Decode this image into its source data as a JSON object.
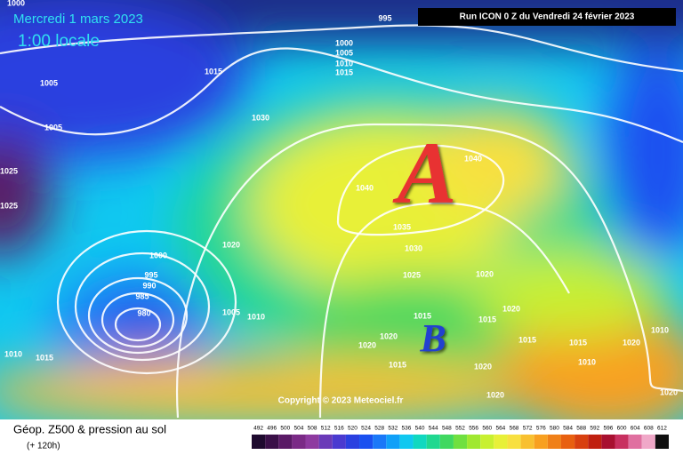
{
  "header": {
    "date": "Mercredi 1 mars 2023",
    "time": "1:00 locale",
    "run": "Run ICON 0 Z du Vendredi 24 février 2023"
  },
  "map": {
    "high_label": "A",
    "low_label": "B",
    "isobar_labels": [
      995,
      1000,
      1005,
      1010,
      1015,
      1015,
      1005,
      1005,
      1000,
      1025,
      1025,
      1030,
      1040,
      1040,
      1035,
      1030,
      1025,
      1020,
      1020,
      1015,
      1015,
      1015,
      1015,
      1020,
      1020,
      1015,
      1020,
      1020,
      1020,
      1000,
      995,
      990,
      985,
      980,
      1005,
      1010,
      1010,
      1015,
      1020,
      1010,
      1020,
      1010
    ],
    "copyright": "Copyright © 2023 Meteociel.fr"
  },
  "footer": {
    "title": "Géop. Z500 & pression au sol",
    "subtitle": "(+ 120h)",
    "colorbar": {
      "levels": [
        492,
        496,
        500,
        504,
        508,
        512,
        516,
        520,
        524,
        528,
        532,
        536,
        540,
        544,
        548,
        552,
        556,
        560,
        564,
        568,
        572,
        576,
        580,
        584,
        588,
        592,
        596,
        600,
        604,
        608,
        612
      ],
      "colors": [
        "#1e0a2e",
        "#3a1048",
        "#5a1a66",
        "#7a2a86",
        "#8e3aa0",
        "#6a3ab8",
        "#4a3ad0",
        "#2a40e0",
        "#1a50f0",
        "#1a78f8",
        "#10a0f8",
        "#10c8f0",
        "#10d8c0",
        "#20d890",
        "#40d860",
        "#70e040",
        "#a0e830",
        "#c8f030",
        "#e8f038",
        "#f8e040",
        "#f8c030",
        "#f8a020",
        "#f08018",
        "#e86010",
        "#d84010",
        "#c02010",
        "#a81030",
        "#c83060",
        "#e070a0",
        "#f0a8c8",
        "#101010"
      ]
    }
  }
}
